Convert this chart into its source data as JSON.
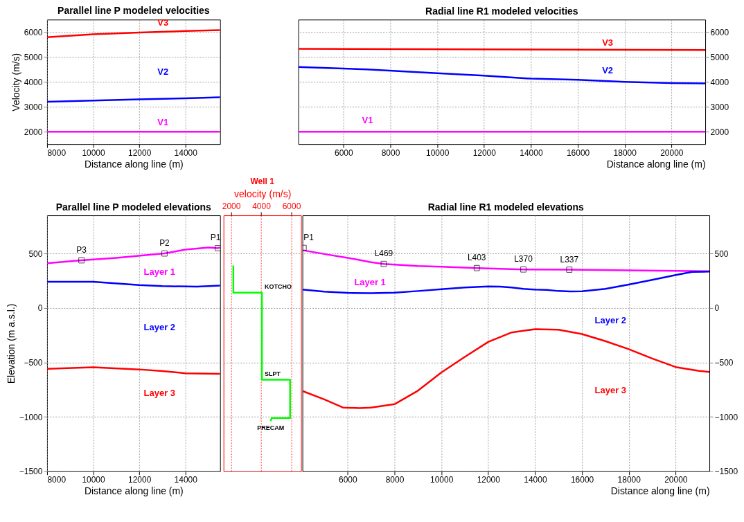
{
  "chart_data": [
    {
      "type": "line",
      "title": "Parallel line P modeled velocities",
      "xlabel": "Distance along line (m)",
      "ylabel": "Velocity (m/s)",
      "xlim": [
        8000,
        15500
      ],
      "xticks": [
        8000,
        10000,
        12000,
        14000
      ],
      "ylim": [
        1500,
        6500
      ],
      "yticks": [
        2000,
        3000,
        4000,
        5000,
        6000
      ],
      "grid": true,
      "legend": false,
      "series": [
        {
          "name": "V1",
          "color": "#ff00ff",
          "x": [
            8000,
            15500
          ],
          "values": [
            2000,
            2000
          ]
        },
        {
          "name": "V2",
          "color": "#0000ff",
          "x": [
            8000,
            10000,
            12000,
            14000,
            15500
          ],
          "values": [
            3200,
            3250,
            3300,
            3340,
            3380
          ]
        },
        {
          "name": "V3",
          "color": "#ff0000",
          "x": [
            8000,
            10000,
            12000,
            14000,
            15500
          ],
          "values": [
            5790,
            5910,
            5980,
            6040,
            6080
          ]
        }
      ]
    },
    {
      "type": "line",
      "title": "Radial line R1 modeled velocities",
      "xlabel": "Distance along line (m)",
      "xlim": [
        4070,
        21440
      ],
      "xticks": [
        6000,
        8000,
        10000,
        12000,
        14000,
        16000,
        18000,
        20000
      ],
      "ylim": [
        1500,
        6500
      ],
      "yticks": [
        2000,
        3000,
        4000,
        5000,
        6000
      ],
      "grid": true,
      "legend": false,
      "series": [
        {
          "name": "V1",
          "color": "#ff00ff",
          "x": [
            4070,
            21440
          ],
          "values": [
            2000,
            2000
          ]
        },
        {
          "name": "V2",
          "color": "#0000ff",
          "x": [
            4070,
            7000,
            10000,
            12000,
            14000,
            16000,
            18000,
            20000,
            21440
          ],
          "values": [
            4600,
            4500,
            4350,
            4250,
            4130,
            4080,
            4000,
            3950,
            3940
          ]
        },
        {
          "name": "V3",
          "color": "#ff0000",
          "x": [
            4070,
            21440
          ],
          "values": [
            5330,
            5280
          ]
        }
      ]
    },
    {
      "type": "line",
      "title": "Parallel line P modeled elevations",
      "xlabel": "Distance along line (m)",
      "ylabel": "Elevation (m a.s.l.)",
      "xlim": [
        8000,
        15500
      ],
      "xticks": [
        8000,
        10000,
        12000,
        14000
      ],
      "ylim": [
        -1500,
        850
      ],
      "yticks": [
        -1500,
        -1000,
        -500,
        0,
        500
      ],
      "grid": true,
      "legend": false,
      "series": [
        {
          "name": "Layer 1",
          "color": "#ff00ff",
          "x": [
            8000,
            9490,
            11000,
            13090,
            14000,
            15000,
            15400,
            15500
          ],
          "values": [
            410,
            437,
            460,
            500,
            535,
            555,
            549,
            555
          ]
        },
        {
          "name": "Layer 2",
          "color": "#0000ff",
          "x": [
            8000,
            10000,
            12000,
            13000,
            14500,
            15500
          ],
          "values": [
            240,
            240,
            210,
            200,
            195,
            205
          ]
        },
        {
          "name": "Layer 3",
          "color": "#ff0000",
          "x": [
            8000,
            10000,
            12000,
            13000,
            14000,
            15500
          ],
          "values": [
            -560,
            -545,
            -565,
            -580,
            -600,
            -605
          ]
        },
        {
          "type": "scatter",
          "marker": "square",
          "color": "#000000",
          "x": [
            9490,
            13090,
            15400
          ],
          "values": [
            437,
            500,
            549
          ]
        }
      ],
      "annotations": [
        {
          "text": "P3",
          "x": 9490,
          "y": 437
        },
        {
          "text": "P2",
          "x": 13090,
          "y": 500
        },
        {
          "text": "P1",
          "x": 15400,
          "y": 549
        }
      ]
    },
    {
      "type": "line",
      "title": "Well 1",
      "xlabel": "velocity (m/s)",
      "xlim": [
        1500,
        6650
      ],
      "xticks": [
        2000,
        4000,
        6000
      ],
      "ylim": [
        -1500,
        850
      ],
      "yticks": [
        -1500,
        -1000,
        -500,
        0,
        500
      ],
      "tick_labels": "x",
      "grid": true,
      "legend": false,
      "series": [
        {
          "color": "#00ff00",
          "x": [
            2150,
            2150,
            4050,
            4050,
            5920,
            5920,
            4700,
            4630
          ],
          "values": [
            390,
            140,
            140,
            -660,
            -660,
            -1010,
            -1010,
            -1040
          ]
        }
      ],
      "annotations": [
        {
          "text": "KOTCHO",
          "x": 4050,
          "y": 140
        },
        {
          "text": "SLPT",
          "x": 4050,
          "y": -660
        },
        {
          "text": "PRECAM",
          "x": 4630,
          "y": -1040
        }
      ]
    },
    {
      "type": "line",
      "title": "Radial line R1 modeled elevations",
      "xlabel": "Distance along line (m)",
      "xlim": [
        4070,
        21440
      ],
      "xticks": [
        6000,
        8000,
        10000,
        12000,
        14000,
        16000,
        18000,
        20000
      ],
      "ylim": [
        -1500,
        850
      ],
      "yticks": [
        -1500,
        -1000,
        -500,
        0,
        500
      ],
      "grid": true,
      "legend": false,
      "series": [
        {
          "name": "Layer 1",
          "color": "#ff00ff",
          "x": [
            4070,
            5000,
            6000,
            7000,
            7540,
            9000,
            10000,
            11510,
            13500,
            15460,
            18000,
            20000,
            21440
          ],
          "values": [
            530,
            495,
            460,
            420,
            404,
            385,
            378,
            366,
            353,
            351,
            345,
            340,
            337
          ]
        },
        {
          "name": "Layer 2",
          "color": "#0000ff",
          "x": [
            4070,
            5000,
            6000,
            7000,
            8000,
            9000,
            10000,
            11000,
            12000,
            12500,
            13000,
            13500,
            14000,
            14500,
            15000,
            15500,
            16000,
            17000,
            18000,
            19000,
            20000,
            20700,
            21440
          ],
          "values": [
            169,
            150,
            138,
            135,
            140,
            155,
            172,
            187,
            197,
            196,
            188,
            175,
            168,
            165,
            155,
            151,
            153,
            175,
            215,
            258,
            302,
            330,
            333
          ]
        },
        {
          "name": "Layer 3",
          "color": "#ff0000",
          "x": [
            4070,
            5000,
            5800,
            6500,
            7000,
            8000,
            9000,
            10000,
            11000,
            12000,
            13000,
            14000,
            15000,
            16000,
            17000,
            18000,
            19000,
            20000,
            21000,
            21440
          ],
          "values": [
            -763,
            -840,
            -915,
            -920,
            -915,
            -884,
            -760,
            -593,
            -450,
            -312,
            -225,
            -195,
            -200,
            -240,
            -305,
            -379,
            -465,
            -543,
            -578,
            -588
          ]
        },
        {
          "type": "scatter",
          "marker": "square",
          "color": "#000000",
          "x": [
            4120,
            7540,
            11510,
            13500,
            15460
          ],
          "values": [
            551,
            404,
            366,
            353,
            351
          ]
        }
      ],
      "annotations": [
        {
          "text": "P1",
          "x": 4120,
          "y": 551
        },
        {
          "text": "L469",
          "x": 7540,
          "y": 404
        },
        {
          "text": "L403",
          "x": 11510,
          "y": 366
        },
        {
          "text": "L370",
          "x": 13500,
          "y": 353
        },
        {
          "text": "L337",
          "x": 15460,
          "y": 351
        }
      ]
    }
  ]
}
